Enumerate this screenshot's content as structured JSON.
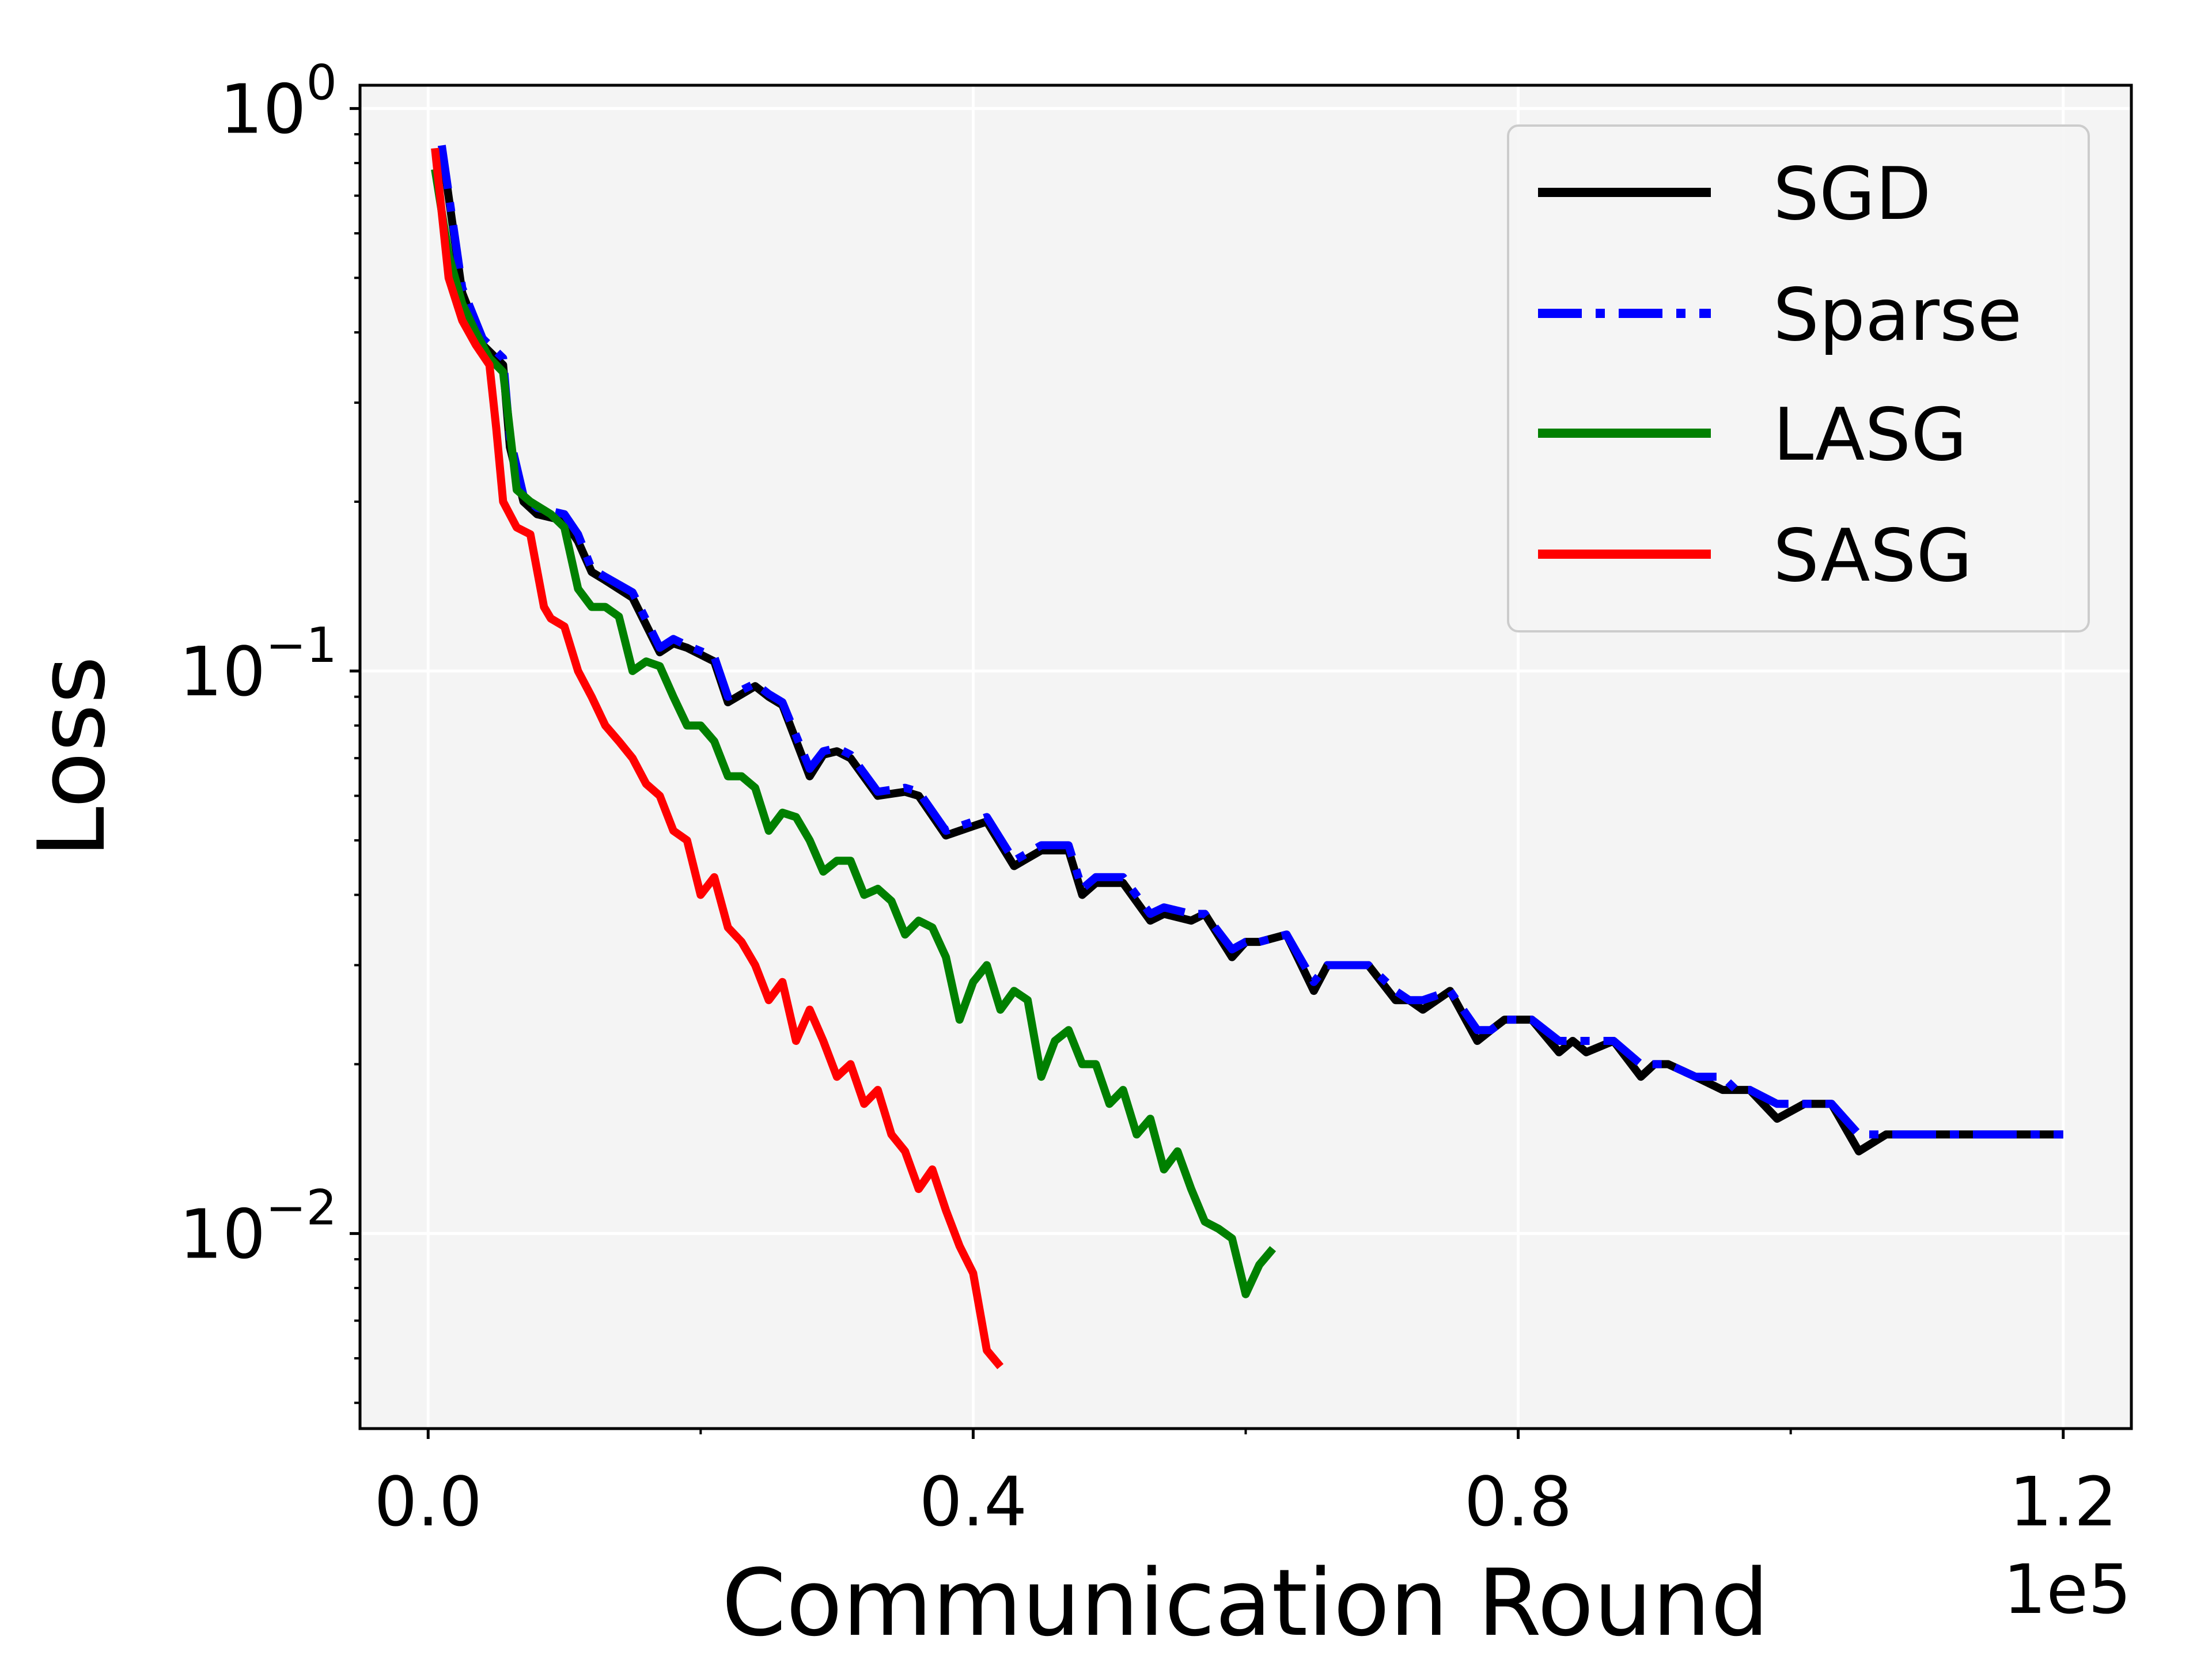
{
  "chart_data": {
    "type": "line",
    "title": "",
    "xlabel": "Communication Round",
    "ylabel": "Loss",
    "x_offset_label": "1e5",
    "x_scale": 100000,
    "xlim": [
      -5000,
      125000
    ],
    "ylim": [
      0.0045,
      1.1
    ],
    "yscale": "log",
    "grid": true,
    "legend_position": "top-right",
    "x_ticks": [
      {
        "value": 0,
        "label": "0.0"
      },
      {
        "value": 40000,
        "label": "0.4"
      },
      {
        "value": 80000,
        "label": "0.8"
      },
      {
        "value": 120000,
        "label": "1.2"
      }
    ],
    "x_minor_ticks": [
      20000,
      60000,
      100000
    ],
    "y_ticks": [
      {
        "value": 1,
        "base": "10",
        "exp": "0"
      },
      {
        "value": 0.1,
        "base": "10",
        "exp": "−1"
      },
      {
        "value": 0.01,
        "base": "10",
        "exp": "−2"
      }
    ],
    "colors": {
      "SGD": "#000000",
      "Sparse": "#0000ff",
      "LASG": "#008000",
      "SASG": "#ff0000",
      "plot_bg": "#f4f4f4",
      "grid": "#ffffff"
    },
    "series": [
      {
        "name": "SGD",
        "style": "solid",
        "x": [
          1000,
          2500,
          4000,
          5500,
          6000,
          7000,
          8000,
          10000,
          11000,
          12000,
          13000,
          15000,
          17000,
          18000,
          19000,
          21000,
          22000,
          24000,
          25000,
          26000,
          28000,
          29000,
          30000,
          31000,
          33000,
          35000,
          36000,
          38000,
          40000,
          41000,
          43000,
          45000,
          47000,
          48000,
          49000,
          51000,
          53000,
          54000,
          56000,
          57000,
          59000,
          60000,
          61000,
          63000,
          65000,
          66000,
          67000,
          69000,
          71000,
          72000,
          73000,
          75000,
          77000,
          78000,
          79000,
          81000,
          83000,
          84000,
          85000,
          87000,
          89000,
          90000,
          91000,
          93000,
          95000,
          96000,
          97000,
          99000,
          101000,
          102000,
          103000,
          105000,
          107000,
          108000,
          109000,
          111000,
          113000,
          114000,
          115000,
          117000,
          119000,
          120000
        ],
        "y": [
          0.85,
          0.47,
          0.38,
          0.35,
          0.25,
          0.2,
          0.19,
          0.185,
          0.17,
          0.15,
          0.145,
          0.135,
          0.108,
          0.112,
          0.11,
          0.104,
          0.088,
          0.094,
          0.09,
          0.087,
          0.065,
          0.071,
          0.072,
          0.07,
          0.06,
          0.061,
          0.06,
          0.051,
          0.053,
          0.054,
          0.045,
          0.048,
          0.048,
          0.04,
          0.042,
          0.042,
          0.036,
          0.037,
          0.036,
          0.037,
          0.031,
          0.033,
          0.033,
          0.034,
          0.027,
          0.03,
          0.03,
          0.03,
          0.026,
          0.026,
          0.025,
          0.027,
          0.022,
          0.023,
          0.024,
          0.024,
          0.021,
          0.022,
          0.021,
          0.022,
          0.019,
          0.02,
          0.02,
          0.019,
          0.018,
          0.018,
          0.018,
          0.016,
          0.017,
          0.017,
          0.017,
          0.014,
          0.015,
          0.015,
          0.015,
          0.015,
          0.015,
          0.015,
          0.015,
          0.015,
          0.015,
          0.015
        ]
      },
      {
        "name": "Sparse",
        "style": "dashdot",
        "x": [
          1000,
          2500,
          4000,
          5500,
          6000,
          7000,
          8000,
          10000,
          11000,
          12000,
          13000,
          15000,
          17000,
          18000,
          19000,
          21000,
          22000,
          24000,
          25000,
          26000,
          28000,
          29000,
          30000,
          31000,
          33000,
          35000,
          36000,
          38000,
          40000,
          41000,
          43000,
          45000,
          47000,
          48000,
          49000,
          51000,
          53000,
          54000,
          56000,
          57000,
          59000,
          60000,
          61000,
          63000,
          65000,
          66000,
          67000,
          69000,
          71000,
          72000,
          73000,
          75000,
          77000,
          78000,
          79000,
          81000,
          83000,
          84000,
          85000,
          87000,
          89000,
          90000,
          91000,
          93000,
          95000,
          96000,
          97000,
          99000,
          101000,
          102000,
          103000,
          105000,
          107000,
          108000,
          109000,
          111000,
          113000,
          114000,
          115000,
          117000,
          119000,
          120000
        ],
        "y": [
          0.86,
          0.48,
          0.39,
          0.36,
          0.26,
          0.205,
          0.195,
          0.19,
          0.175,
          0.152,
          0.147,
          0.138,
          0.11,
          0.114,
          0.111,
          0.106,
          0.09,
          0.095,
          0.091,
          0.088,
          0.067,
          0.072,
          0.073,
          0.071,
          0.061,
          0.062,
          0.061,
          0.052,
          0.054,
          0.055,
          0.046,
          0.049,
          0.049,
          0.041,
          0.043,
          0.043,
          0.037,
          0.038,
          0.037,
          0.037,
          0.032,
          0.033,
          0.033,
          0.034,
          0.028,
          0.03,
          0.03,
          0.03,
          0.027,
          0.026,
          0.026,
          0.027,
          0.023,
          0.023,
          0.024,
          0.024,
          0.022,
          0.022,
          0.022,
          0.022,
          0.02,
          0.02,
          0.02,
          0.019,
          0.019,
          0.018,
          0.018,
          0.017,
          0.017,
          0.017,
          0.017,
          0.015,
          0.015,
          0.015,
          0.015,
          0.015,
          0.015,
          0.015,
          0.015,
          0.015,
          0.015,
          0.015
        ]
      },
      {
        "name": "LASG",
        "style": "solid",
        "x": [
          500,
          1500,
          2500,
          3500,
          4500,
          5500,
          6500,
          7500,
          9000,
          10000,
          11000,
          12000,
          13000,
          14000,
          15000,
          16000,
          17000,
          18000,
          19000,
          20000,
          21000,
          22000,
          23000,
          24000,
          25000,
          26000,
          27000,
          28000,
          29000,
          30000,
          31000,
          32000,
          33000,
          34000,
          35000,
          36000,
          37000,
          38000,
          39000,
          40000,
          41000,
          42000,
          43000,
          44000,
          45000,
          46000,
          47000,
          48000,
          49000,
          50000,
          51000,
          52000,
          53000,
          54000,
          55000,
          56000,
          57000,
          58000,
          59000,
          60000,
          61000,
          62000
        ],
        "y": [
          0.78,
          0.55,
          0.45,
          0.4,
          0.36,
          0.34,
          0.21,
          0.2,
          0.19,
          0.18,
          0.14,
          0.13,
          0.13,
          0.125,
          0.1,
          0.104,
          0.102,
          0.09,
          0.08,
          0.08,
          0.075,
          0.065,
          0.065,
          0.062,
          0.052,
          0.056,
          0.055,
          0.05,
          0.044,
          0.046,
          0.046,
          0.04,
          0.041,
          0.039,
          0.034,
          0.036,
          0.035,
          0.031,
          0.024,
          0.028,
          0.03,
          0.025,
          0.027,
          0.026,
          0.019,
          0.022,
          0.023,
          0.02,
          0.02,
          0.017,
          0.018,
          0.015,
          0.016,
          0.013,
          0.014,
          0.012,
          0.0105,
          0.0102,
          0.0098,
          0.0078,
          0.0088,
          0.0094
        ]
      },
      {
        "name": "SASG",
        "style": "solid",
        "x": [
          500,
          1500,
          2500,
          3500,
          4500,
          5000,
          5500,
          6500,
          7500,
          8500,
          9000,
          10000,
          11000,
          12000,
          13000,
          14000,
          15000,
          16000,
          17000,
          18000,
          19000,
          20000,
          21000,
          22000,
          23000,
          24000,
          25000,
          26000,
          27000,
          28000,
          29000,
          30000,
          31000,
          32000,
          33000,
          34000,
          35000,
          36000,
          37000,
          38000,
          39000,
          40000,
          41000,
          42000
        ],
        "y": [
          0.85,
          0.5,
          0.42,
          0.38,
          0.35,
          0.27,
          0.2,
          0.18,
          0.175,
          0.13,
          0.124,
          0.12,
          0.1,
          0.09,
          0.08,
          0.075,
          0.07,
          0.063,
          0.06,
          0.052,
          0.05,
          0.04,
          0.043,
          0.035,
          0.033,
          0.03,
          0.026,
          0.028,
          0.022,
          0.025,
          0.022,
          0.019,
          0.02,
          0.017,
          0.018,
          0.015,
          0.014,
          0.012,
          0.013,
          0.011,
          0.0095,
          0.0085,
          0.0062,
          0.0058
        ]
      }
    ]
  }
}
